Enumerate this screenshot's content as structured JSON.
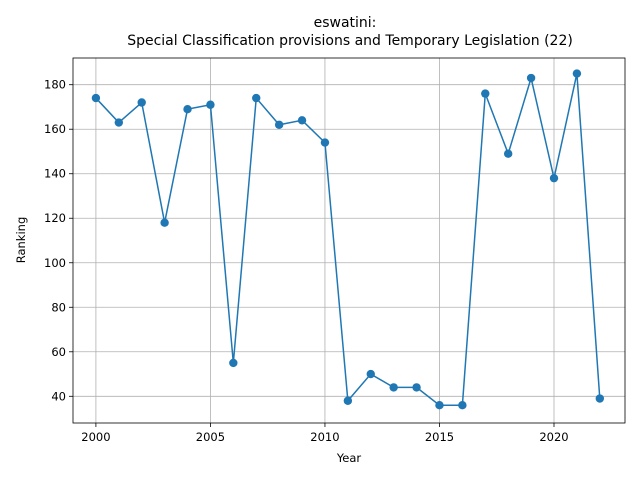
{
  "chart_data": {
    "type": "line",
    "title_line1": "eswatini:",
    "title_line2": "Special Classification provisions and Temporary Legislation (22)",
    "xlabel": "Year",
    "ylabel": "Ranking",
    "xlim": [
      1999.0,
      2023.1
    ],
    "ylim": [
      28,
      192
    ],
    "xticks": [
      2000,
      2005,
      2010,
      2015,
      2020
    ],
    "yticks": [
      40,
      60,
      80,
      100,
      120,
      140,
      160,
      180
    ],
    "grid": true,
    "color": "#1f77b4",
    "x": [
      2000,
      2001,
      2002,
      2003,
      2004,
      2005,
      2006,
      2007,
      2008,
      2009,
      2010,
      2011,
      2012,
      2013,
      2014,
      2015,
      2016,
      2017,
      2018,
      2019,
      2020,
      2021,
      2022
    ],
    "values": [
      174,
      163,
      172,
      118,
      169,
      171,
      55,
      174,
      162,
      164,
      154,
      38,
      50,
      44,
      44,
      36,
      36,
      176,
      149,
      183,
      138,
      185,
      39
    ]
  }
}
